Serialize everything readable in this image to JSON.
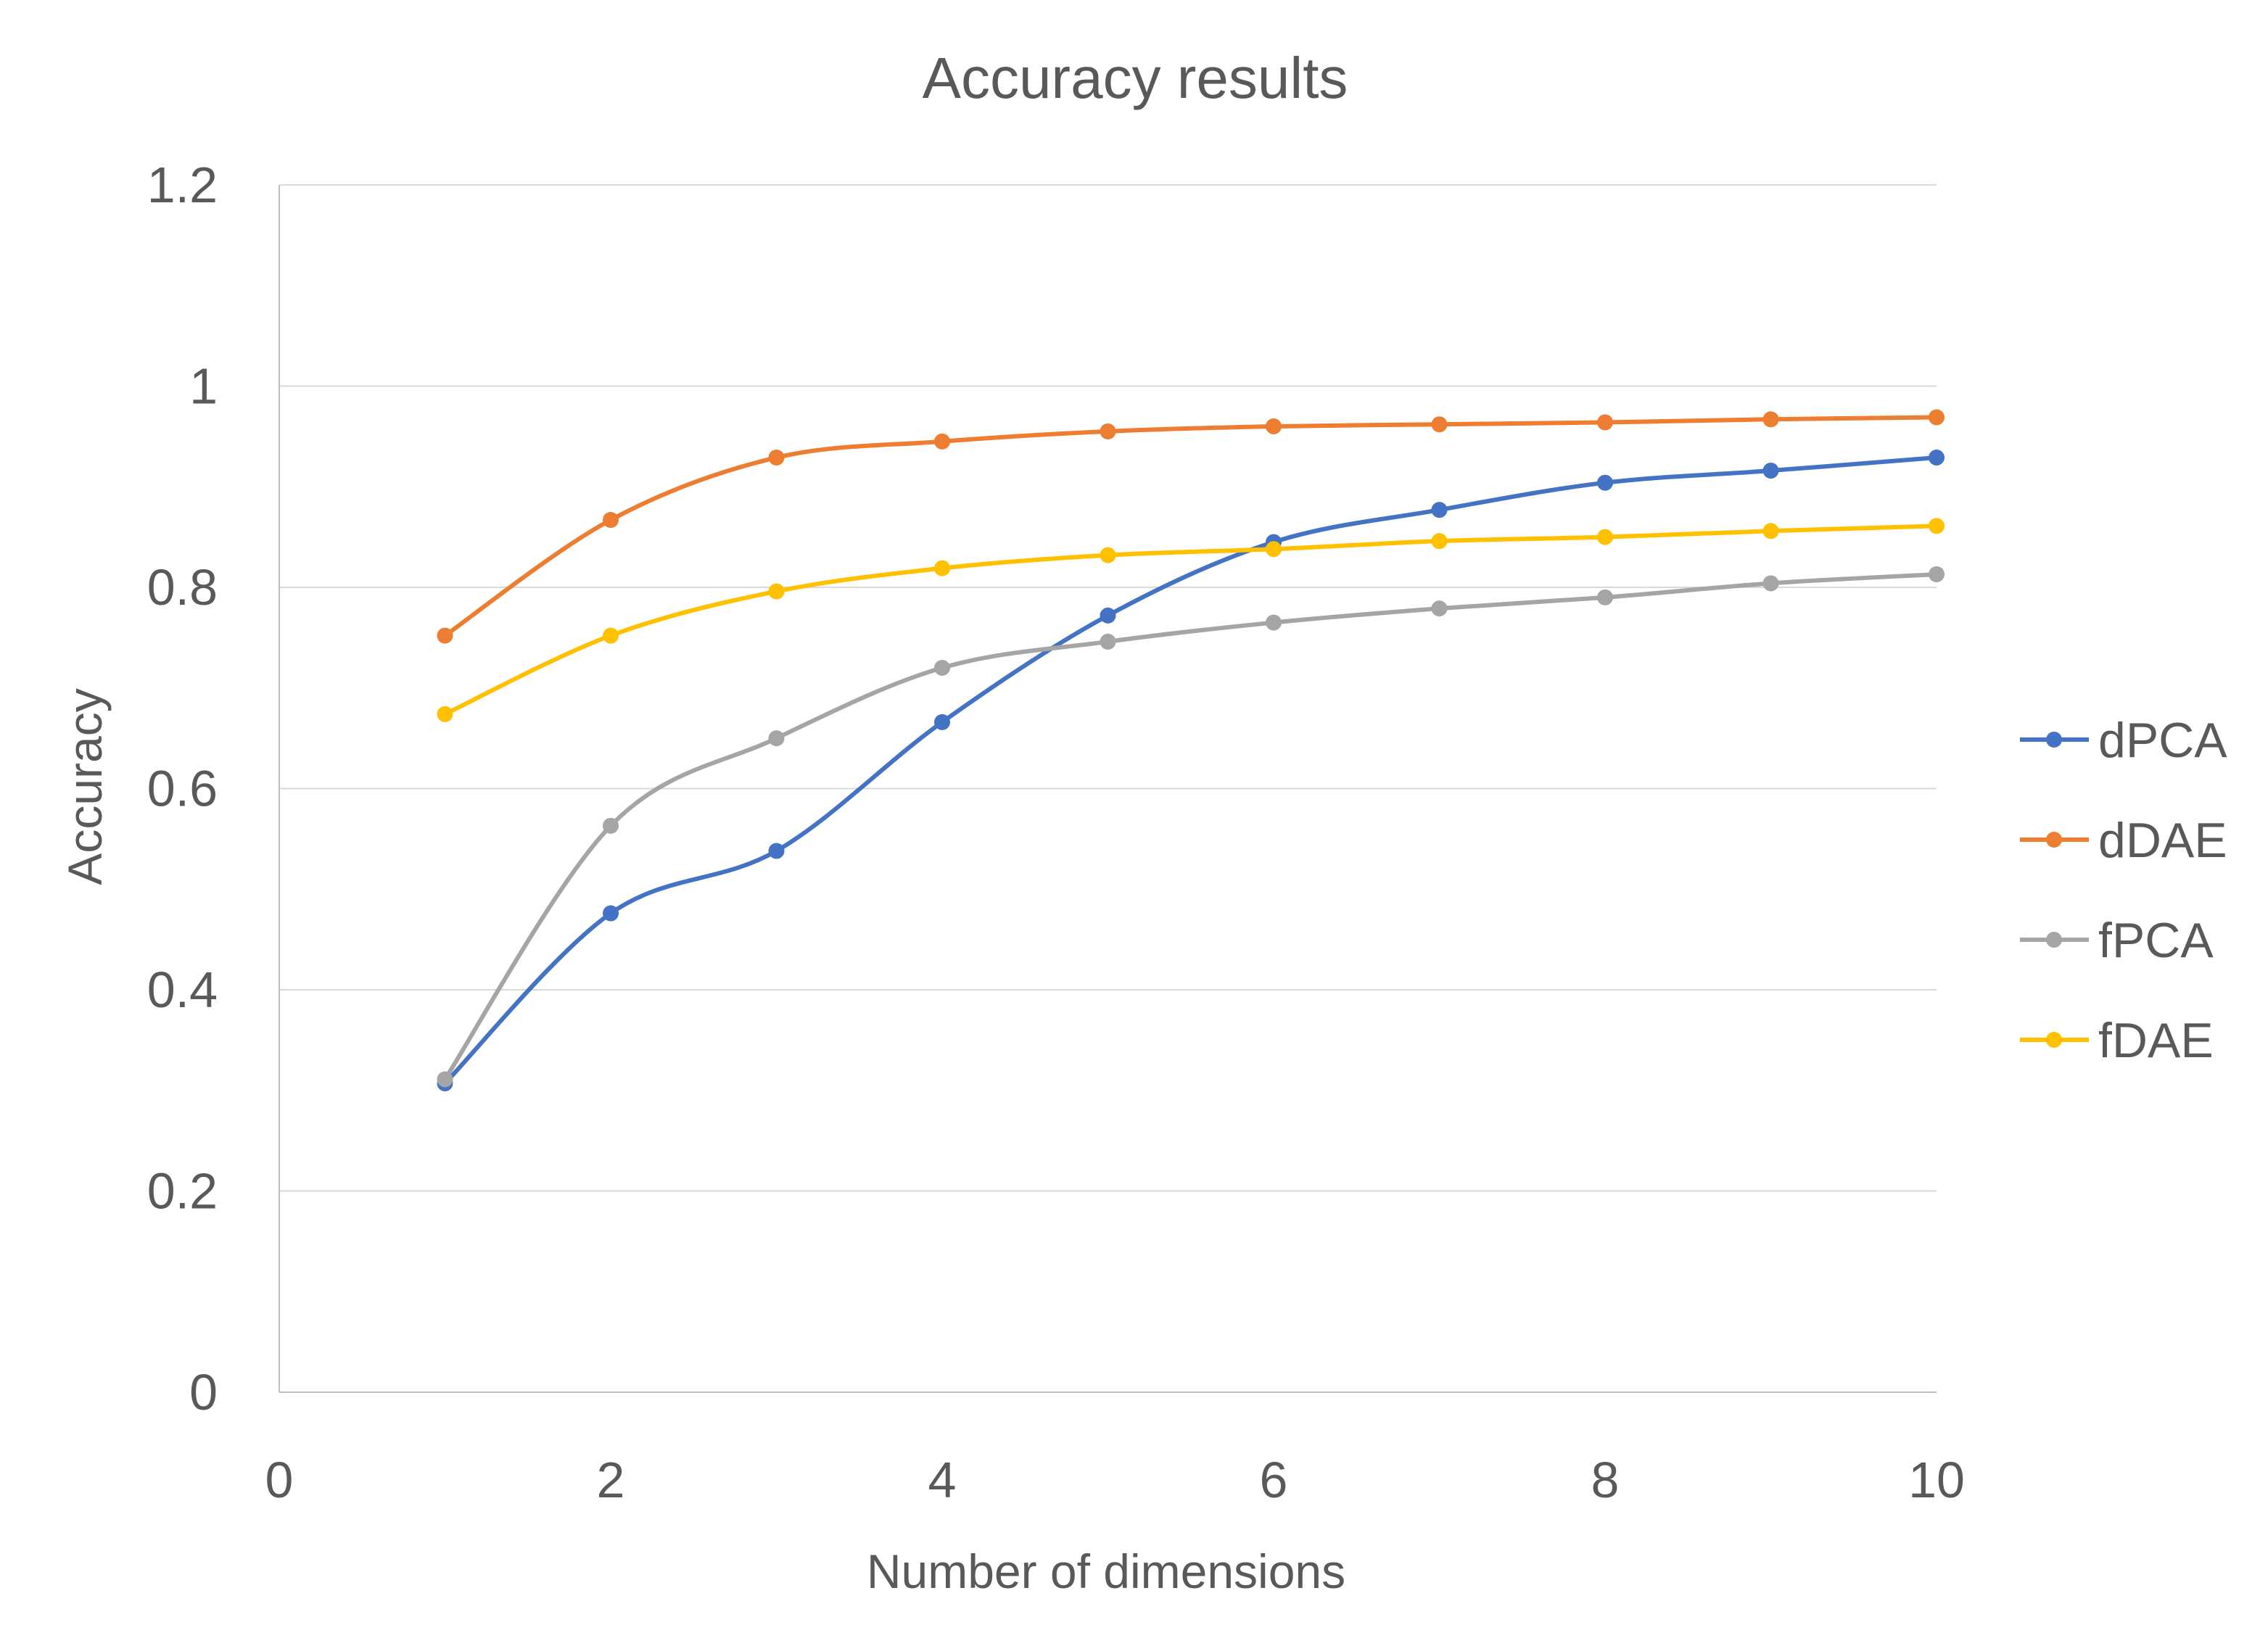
{
  "chart_data": {
    "type": "line",
    "title": "Accuracy results",
    "xlabel": "Number of dimensions",
    "ylabel": "Accuracy",
    "xlim": [
      0,
      10
    ],
    "ylim": [
      0,
      1.2
    ],
    "x_ticks": [
      0,
      2,
      4,
      6,
      8,
      10
    ],
    "x_tick_labels": [
      "0",
      "2",
      "4",
      "6",
      "8",
      "10"
    ],
    "y_ticks": [
      0,
      0.2,
      0.4,
      0.6,
      0.8,
      1,
      1.2
    ],
    "y_tick_labels": [
      "0",
      "0.2",
      "0.4",
      "0.6",
      "0.8",
      "1",
      "1.2"
    ],
    "grid": "horizontal",
    "legend_position": "right",
    "x": [
      1,
      2,
      3,
      4,
      5,
      6,
      7,
      8,
      9,
      10
    ],
    "series": [
      {
        "name": "dPCA",
        "color": "#4472c4",
        "values": [
          0.307,
          0.476,
          0.538,
          0.666,
          0.772,
          0.845,
          0.877,
          0.904,
          0.916,
          0.929
        ]
      },
      {
        "name": "dDAE",
        "color": "#ed7d31",
        "values": [
          0.752,
          0.867,
          0.929,
          0.945,
          0.955,
          0.96,
          0.962,
          0.964,
          0.967,
          0.969
        ]
      },
      {
        "name": "fPCA",
        "color": "#a5a5a5",
        "values": [
          0.311,
          0.563,
          0.65,
          0.72,
          0.746,
          0.765,
          0.779,
          0.79,
          0.804,
          0.813
        ]
      },
      {
        "name": "fDAE",
        "color": "#ffc000",
        "values": [
          0.674,
          0.752,
          0.796,
          0.819,
          0.832,
          0.838,
          0.846,
          0.85,
          0.856,
          0.861
        ]
      }
    ]
  }
}
